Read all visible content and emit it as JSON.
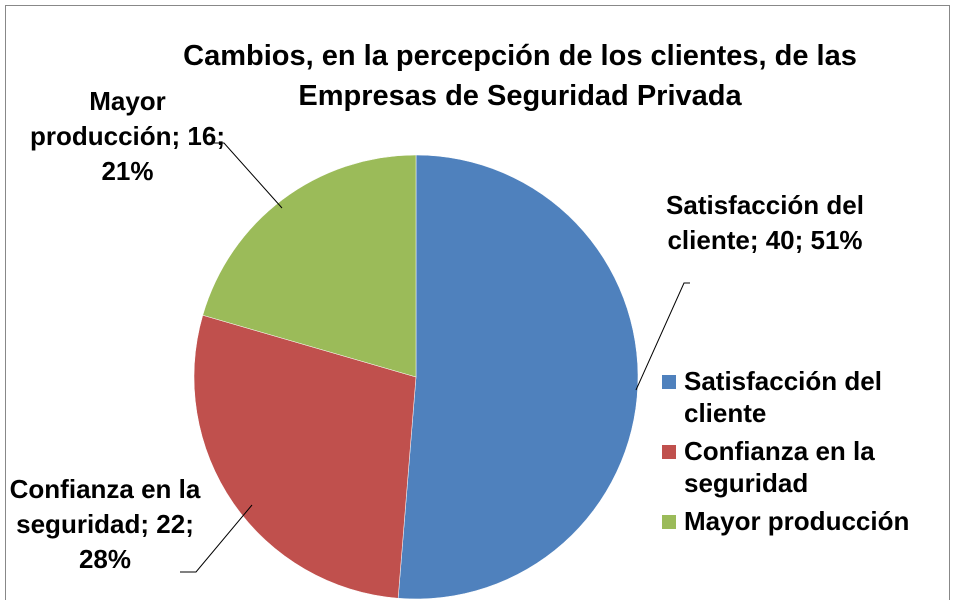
{
  "chart_data": {
    "type": "pie",
    "title": "Cambios, en la percepción de los clientes, de las Empresas de Seguridad Privada",
    "categories": [
      "Satisfacción del cliente",
      "Confianza en la seguridad",
      "Mayor producción"
    ],
    "values": [
      40,
      22,
      16
    ],
    "value_labels": [
      "Satisfacción del cliente; 40; 51%",
      "Confianza en la seguridad; 22; 28%",
      "Mayor producción; 16; 21%"
    ],
    "colors": [
      "#4f81bd",
      "#c0504d",
      "#9bbb59"
    ],
    "legend": "right"
  }
}
